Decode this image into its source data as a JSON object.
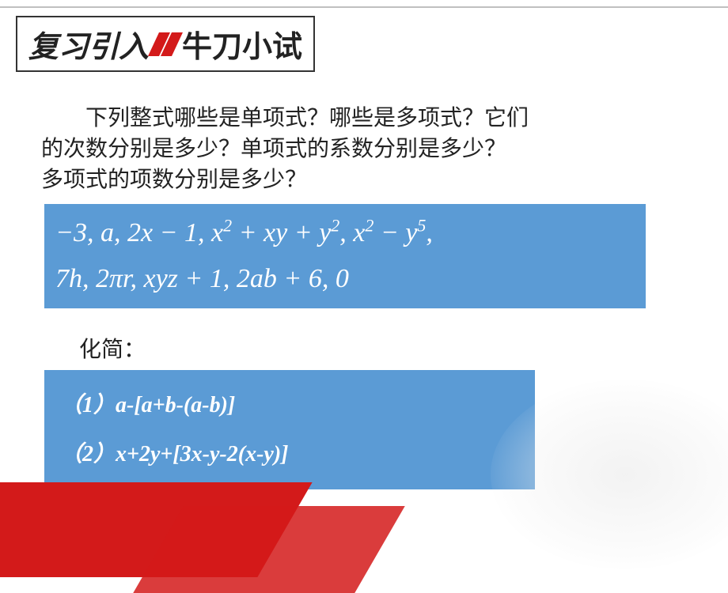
{
  "header": {
    "part1": "复习引入",
    "part2": "牛刀小试"
  },
  "question": {
    "line1": "　　下列整式哪些是单项式？哪些是多项式？它们",
    "line2": "的次数分别是多少？单项式的系数分别是多少？",
    "line3": "多项式的项数分别是多少？"
  },
  "expressions": {
    "row1_html": "−3,  <span style='font-style:italic'>a</span>,  2<span style='font-style:italic'>x</span> − 1,  <span style='font-style:italic'>x</span><span class='sup'>2</span> + <span style='font-style:italic'>xy</span> + <span style='font-style:italic'>y</span><span class='sup'>2</span>,  <span style='font-style:italic'>x</span><span class='sup'>2</span> − <span style='font-style:italic'>y</span><span class='sup'>5</span>,",
    "row2_html": "7<span style='font-style:italic'>h</span>,  2<span style='font-style:italic'>πr</span>,  <span style='font-style:italic'>xyz</span> + 1,  2<span style='font-style:italic'>ab</span> + 6,  0",
    "bg_color": "#5b9bd5",
    "text_color": "#ffffff"
  },
  "simplify": {
    "label": "化简：",
    "item1": "（1）a-[a+b-(a-b)]",
    "item2": "（2）x+2y+[3x-y-2(x-y)]",
    "bg_color": "#5b9bd5"
  },
  "colors": {
    "accent_red": "#d31a1a",
    "box_blue": "#5b9bd5",
    "text_dark": "#222222",
    "bg": "#ffffff"
  }
}
